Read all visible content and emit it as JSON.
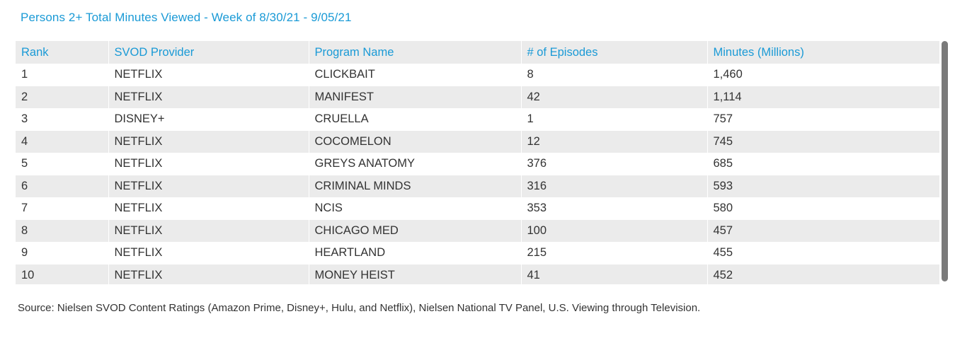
{
  "title": "Persons 2+ Total Minutes Viewed - Week of 8/30/21 - 9/05/21",
  "table": {
    "headers": [
      "Rank",
      "SVOD Provider",
      "Program Name",
      "# of Episodes",
      "Minutes (Millions)"
    ],
    "rows": [
      [
        "1",
        "NETFLIX",
        "CLICKBAIT",
        "8",
        "1,460"
      ],
      [
        "2",
        "NETFLIX",
        "MANIFEST",
        "42",
        "1,114"
      ],
      [
        "3",
        "DISNEY+",
        "CRUELLA",
        "1",
        "757"
      ],
      [
        "4",
        "NETFLIX",
        "COCOMELON",
        "12",
        "745"
      ],
      [
        "5",
        "NETFLIX",
        "GREYS ANATOMY",
        "376",
        "685"
      ],
      [
        "6",
        "NETFLIX",
        "CRIMINAL MINDS",
        "316",
        "593"
      ],
      [
        "7",
        "NETFLIX",
        "NCIS",
        "353",
        "580"
      ],
      [
        "8",
        "NETFLIX",
        "CHICAGO MED",
        "100",
        "457"
      ],
      [
        "9",
        "NETFLIX",
        "HEARTLAND",
        "215",
        "455"
      ],
      [
        "10",
        "NETFLIX",
        "MONEY HEIST",
        "41",
        "452"
      ]
    ]
  },
  "source": "Source: Nielsen SVOD Content Ratings (Amazon Prime, Disney+, Hulu, and Netflix), Nielsen National TV Panel, U.S. Viewing through Television.",
  "colors": {
    "accent": "#1a9ad6",
    "stripe": "#ebebeb",
    "text": "#333333",
    "scrollbar": "#7a7a7a"
  }
}
